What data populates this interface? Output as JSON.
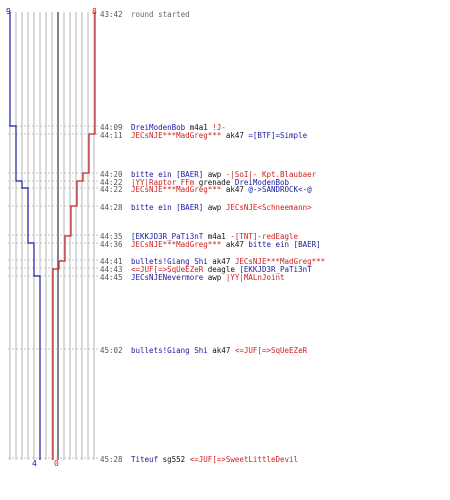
{
  "scores": {
    "blue_start": "9",
    "red_start": "8",
    "blue_end": "4",
    "red_end": "0"
  },
  "colors": {
    "blue": "#1a1aa0",
    "red": "#d21e1e",
    "grid": "#b4b4b4",
    "time": "#555555"
  },
  "events": [
    {
      "time": "43:42",
      "parts": [
        {
          "c": "g",
          "t": "round started"
        }
      ]
    },
    {
      "time": "44:09",
      "parts": [
        {
          "c": "b",
          "t": "DreiModenBob"
        },
        {
          "c": "k",
          "t": " m4a1 "
        },
        {
          "c": "r",
          "t": "!J-"
        }
      ]
    },
    {
      "time": "44:11",
      "parts": [
        {
          "c": "r",
          "t": "JECsNJE***MadGreg***"
        },
        {
          "c": "k",
          "t": " ak47 "
        },
        {
          "c": "b",
          "t": "=[BTF]=Simple"
        }
      ]
    },
    {
      "time": "44:20",
      "parts": [
        {
          "c": "b",
          "t": "bitte ein [BAER]"
        },
        {
          "c": "k",
          "t": " awp "
        },
        {
          "c": "r",
          "t": "-|SoI|- Kpt.Blaubaer"
        }
      ]
    },
    {
      "time": "44:22",
      "parts": [
        {
          "c": "r",
          "t": "|YY|Raptor_FFm"
        },
        {
          "c": "k",
          "t": " grenade "
        },
        {
          "c": "b",
          "t": "DreiModenBob"
        }
      ]
    },
    {
      "time": "44:22",
      "parts": [
        {
          "c": "r",
          "t": "JECsNJE***MadGreg***"
        },
        {
          "c": "k",
          "t": " ak47 "
        },
        {
          "c": "b",
          "t": "@->SANDROCK<-@"
        }
      ]
    },
    {
      "time": "44:28",
      "parts": [
        {
          "c": "b",
          "t": "bitte ein [BAER]"
        },
        {
          "c": "k",
          "t": " awp "
        },
        {
          "c": "r",
          "t": "JECsNJE<Schneemann>"
        }
      ]
    },
    {
      "time": "44:35",
      "parts": [
        {
          "c": "b",
          "t": "[EKKJD3R_PaTi3nT"
        },
        {
          "c": "k",
          "t": " m4a1 "
        },
        {
          "c": "r",
          "t": "-[TNT]-redEagle"
        }
      ]
    },
    {
      "time": "44:36",
      "parts": [
        {
          "c": "r",
          "t": "JECsNJE***MadGreg***"
        },
        {
          "c": "k",
          "t": " ak47 "
        },
        {
          "c": "b",
          "t": "bitte ein [BAER]"
        }
      ]
    },
    {
      "time": "44:41",
      "parts": [
        {
          "c": "b",
          "t": "bullets!Giang Shi"
        },
        {
          "c": "k",
          "t": " ak47 "
        },
        {
          "c": "r",
          "t": "JECsNJE***MadGreg***"
        }
      ]
    },
    {
      "time": "44:43",
      "parts": [
        {
          "c": "r",
          "t": "<=JUF[=>SqUeEZeR"
        },
        {
          "c": "k",
          "t": " deagle "
        },
        {
          "c": "b",
          "t": "[EKKJD3R_PaTi3nT"
        }
      ]
    },
    {
      "time": "44:45",
      "parts": [
        {
          "c": "b",
          "t": "JECsNJENevermore"
        },
        {
          "c": "k",
          "t": " awp "
        },
        {
          "c": "r",
          "t": "|YY|MALnJoint"
        }
      ]
    },
    {
      "time": "45:02",
      "parts": [
        {
          "c": "b",
          "t": "bullets!Giang Shi"
        },
        {
          "c": "k",
          "t": " ak47 "
        },
        {
          "c": "r",
          "t": "<=JUF[=>SqUeEZeR"
        }
      ]
    },
    {
      "time": "45:28",
      "parts": [
        {
          "c": "b",
          "t": "Titeuf"
        },
        {
          "c": "k",
          "t": " sg552 "
        },
        {
          "c": "r",
          "t": "<=JUF[=>SweetLittleDevil"
        }
      ]
    }
  ]
}
